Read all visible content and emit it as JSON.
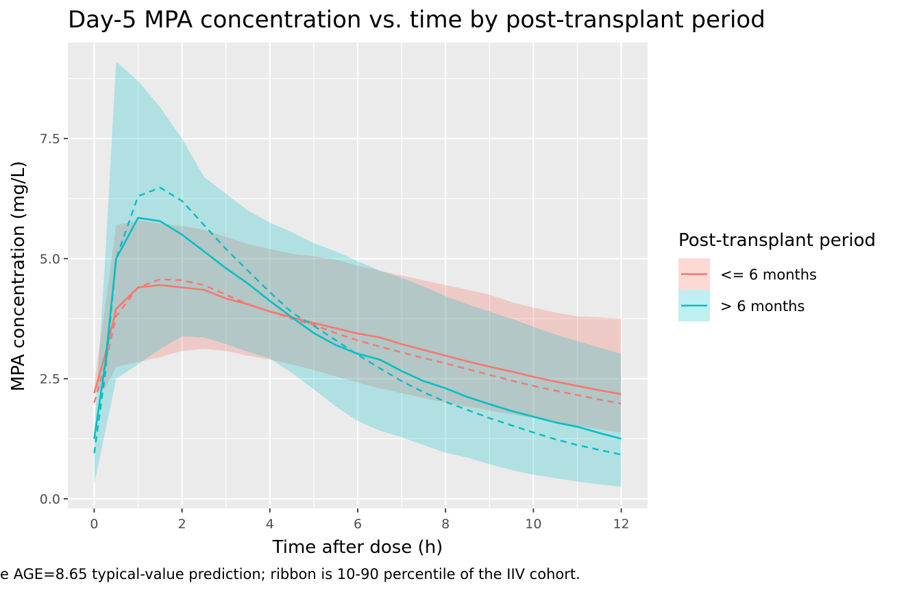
{
  "chart_data": {
    "type": "line",
    "title": "Day-5 MPA concentration vs. time by post-transplant period",
    "xlabel": "Time after dose (h)",
    "ylabel": "MPA concentration (mg/L)",
    "caption": "e AGE=8.65 typical-value prediction; ribbon is 10-90 percentile of the IIV cohort.",
    "xlim": [
      -0.6,
      12.6
    ],
    "ylim": [
      -0.2,
      9.5
    ],
    "x_ticks": [
      0,
      2,
      4,
      6,
      8,
      10,
      12
    ],
    "x_tick_labels": [
      "0",
      "2",
      "4",
      "6",
      "8",
      "10",
      "12"
    ],
    "y_ticks": [
      0,
      2.5,
      5,
      7.5
    ],
    "y_tick_labels": [
      "0.0",
      "2.5",
      "5.0",
      "7.5"
    ],
    "grid": true,
    "legend": {
      "title": "Post-transplant period",
      "position": "right",
      "entries": [
        "<= 6 months",
        "> 6 months"
      ]
    },
    "colors": {
      "le6": "#F8766D",
      "gt6": "#00BFC4",
      "panel": "#EBEBEB",
      "grid": "#FFFFFF"
    },
    "series": [
      {
        "name": "<= 6 months",
        "color": "#F8766D",
        "x": [
          0,
          0.25,
          0.5,
          1,
          1.5,
          2,
          2.5,
          3,
          3.5,
          4,
          4.5,
          5,
          5.5,
          6,
          6.5,
          7,
          7.5,
          8,
          8.5,
          9,
          9.5,
          10,
          10.5,
          11,
          11.5,
          12
        ],
        "solid": [
          2.2,
          3.0,
          3.95,
          4.4,
          4.45,
          4.4,
          4.35,
          4.17,
          4.05,
          3.9,
          3.78,
          3.66,
          3.55,
          3.44,
          3.36,
          3.22,
          3.1,
          2.98,
          2.86,
          2.75,
          2.65,
          2.54,
          2.44,
          2.35,
          2.26,
          2.18
        ],
        "dashed": [
          2.0,
          2.8,
          3.8,
          4.4,
          4.57,
          4.55,
          4.45,
          4.25,
          4.05,
          3.9,
          3.75,
          3.62,
          3.45,
          3.3,
          3.17,
          3.05,
          2.93,
          2.82,
          2.7,
          2.58,
          2.46,
          2.35,
          2.25,
          2.16,
          2.07,
          1.98
        ],
        "lower": [
          2.2,
          2.3,
          2.75,
          2.85,
          2.95,
          3.08,
          3.12,
          3.08,
          2.98,
          2.9,
          2.8,
          2.68,
          2.55,
          2.42,
          2.3,
          2.2,
          2.1,
          2.0,
          1.92,
          1.84,
          1.76,
          1.68,
          1.6,
          1.52,
          1.45,
          1.38
        ],
        "upper": [
          2.4,
          4.0,
          5.7,
          5.8,
          5.73,
          5.68,
          5.6,
          5.45,
          5.3,
          5.2,
          5.1,
          5.05,
          4.98,
          4.85,
          4.75,
          4.65,
          4.55,
          4.45,
          4.35,
          4.25,
          4.1,
          3.98,
          3.88,
          3.8,
          3.78,
          3.75
        ]
      },
      {
        "name": "> 6 months",
        "color": "#00BFC4",
        "x": [
          0,
          0.25,
          0.5,
          1,
          1.5,
          2,
          2.5,
          3,
          3.5,
          4,
          4.5,
          5,
          5.5,
          6,
          6.5,
          7,
          7.5,
          8,
          8.5,
          9,
          9.5,
          10,
          10.5,
          11,
          11.5,
          12
        ],
        "solid": [
          1.25,
          2.8,
          5.0,
          5.85,
          5.78,
          5.5,
          5.15,
          4.8,
          4.48,
          4.12,
          3.78,
          3.45,
          3.2,
          3.02,
          2.9,
          2.66,
          2.45,
          2.3,
          2.12,
          1.97,
          1.83,
          1.71,
          1.59,
          1.5,
          1.37,
          1.25
        ],
        "dashed": [
          0.95,
          2.6,
          5.0,
          6.3,
          6.48,
          6.2,
          5.7,
          5.2,
          4.75,
          4.3,
          3.88,
          3.6,
          3.3,
          3.0,
          2.72,
          2.45,
          2.22,
          2.02,
          1.85,
          1.68,
          1.53,
          1.38,
          1.24,
          1.12,
          1.02,
          0.92
        ],
        "lower": [
          0.3,
          1.4,
          2.5,
          2.8,
          3.12,
          3.38,
          3.36,
          3.22,
          3.06,
          2.92,
          2.62,
          2.28,
          1.92,
          1.62,
          1.42,
          1.28,
          1.12,
          0.96,
          0.86,
          0.72,
          0.6,
          0.5,
          0.43,
          0.36,
          0.3,
          0.25
        ],
        "upper": [
          1.4,
          5.0,
          9.1,
          8.7,
          8.15,
          7.5,
          6.7,
          6.35,
          6.0,
          5.75,
          5.55,
          5.32,
          5.15,
          4.95,
          4.75,
          4.6,
          4.42,
          4.22,
          4.05,
          3.9,
          3.75,
          3.58,
          3.42,
          3.28,
          3.15,
          3.02
        ]
      }
    ]
  }
}
